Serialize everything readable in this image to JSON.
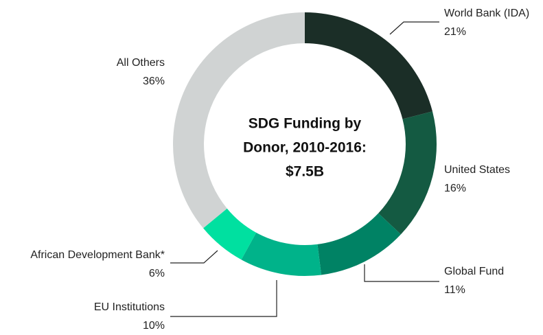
{
  "chart_data": {
    "type": "donut",
    "title": [
      "SDG Funding by",
      "Donor, 2010-2016:",
      "$7.5B"
    ],
    "categories": [
      "World Bank (IDA)",
      "United States",
      "Global Fund",
      "EU Institutions",
      "African Development Bank*",
      "All Others"
    ],
    "values": [
      21,
      16,
      11,
      10,
      6,
      36
    ],
    "value_labels": [
      "21%",
      "16%",
      "11%",
      "10%",
      "6%",
      "36%"
    ],
    "colors": [
      "#1b2e27",
      "#145a42",
      "#008264",
      "#00b38a",
      "#00e0a0",
      "#d0d3d3"
    ]
  }
}
